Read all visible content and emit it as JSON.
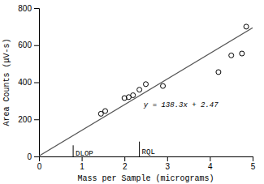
{
  "chart_data": {
    "type": "scatter",
    "xlabel": "Mass per Sample (micrograms)",
    "ylabel": "Area Counts (μV-s)",
    "xlim": [
      0,
      5
    ],
    "ylim": [
      0,
      800
    ],
    "xticks": [
      0,
      1,
      2,
      3,
      4,
      5
    ],
    "yticks": [
      0,
      200,
      400,
      600,
      800
    ],
    "grid": false,
    "series": [
      {
        "type": "line",
        "color": "#555555",
        "x": [
          0,
          5
        ],
        "values": [
          2.47,
          693.97
        ]
      },
      {
        "type": "scatter",
        "marker": "circle",
        "color": "#000000",
        "x": [
          1.45,
          1.55,
          2.0,
          2.1,
          2.2,
          2.35,
          2.5,
          2.9,
          4.2,
          4.5,
          4.75,
          4.85
        ],
        "values": [
          230,
          245,
          315,
          320,
          330,
          360,
          390,
          380,
          455,
          545,
          555,
          700
        ]
      },
      {
        "type": "line",
        "color": "#000000",
        "x": [
          0.8,
          0.8
        ],
        "values": [
          0,
          60
        ],
        "label": "DLOP"
      },
      {
        "type": "line",
        "color": "#000000",
        "x": [
          2.35,
          2.35
        ],
        "values": [
          0,
          80
        ],
        "label": "RQL"
      }
    ],
    "annotations": [
      {
        "text": "y = 138.3x + 2.47",
        "x": 2.45,
        "y": 268
      }
    ]
  }
}
